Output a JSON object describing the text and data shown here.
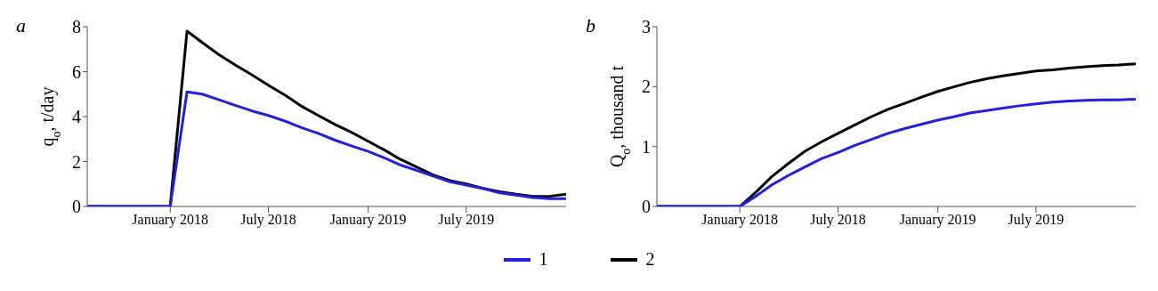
{
  "chart_data": [
    {
      "type": "line",
      "title": "a",
      "ylabel": "q$_{o}$, t/day",
      "x": [
        "2017-08",
        "2017-09",
        "2017-10",
        "2017-11",
        "2017-12",
        "2018-01",
        "2018-02",
        "2018-03",
        "2018-04",
        "2018-05",
        "2018-06",
        "2018-07",
        "2018-08",
        "2018-09",
        "2018-10",
        "2018-11",
        "2018-12",
        "2019-01",
        "2019-02",
        "2019-03",
        "2019-04",
        "2019-05",
        "2019-06",
        "2019-07",
        "2019-08",
        "2019-09",
        "2019-10",
        "2019-11",
        "2019-12",
        "2020-01"
      ],
      "series": [
        {
          "name": "1",
          "color": "#2020e0",
          "values": [
            0,
            0,
            0,
            0,
            0,
            0,
            5.1,
            5.0,
            4.75,
            4.5,
            4.25,
            4.05,
            3.8,
            3.5,
            3.25,
            2.95,
            2.7,
            2.45,
            2.15,
            1.85,
            1.6,
            1.35,
            1.1,
            0.95,
            0.8,
            0.6,
            0.5,
            0.4,
            0.35,
            0.35
          ]
        },
        {
          "name": "2",
          "color": "#000000",
          "values": [
            0,
            0,
            0,
            0,
            0,
            0,
            7.8,
            7.3,
            6.75,
            6.3,
            5.85,
            5.4,
            4.95,
            4.45,
            4.05,
            3.65,
            3.3,
            2.9,
            2.5,
            2.1,
            1.75,
            1.4,
            1.15,
            1.0,
            0.8,
            0.65,
            0.55,
            0.45,
            0.45,
            0.55
          ]
        }
      ],
      "xlim": [
        "2017-08",
        "2020-01"
      ],
      "xticks": [
        {
          "value": "2018-01",
          "label": "January 2018"
        },
        {
          "value": "2018-07",
          "label": "July 2018"
        },
        {
          "value": "2019-01",
          "label": "January 2019"
        },
        {
          "value": "2019-07",
          "label": "July 2019"
        }
      ],
      "ylim": [
        0,
        8
      ],
      "yticks": [
        0,
        2,
        4,
        6,
        8
      ],
      "grid": false,
      "legend": "bottom",
      "line_style": "solid"
    },
    {
      "type": "line",
      "title": "b",
      "ylabel": "Q$_{o}$, thousand t",
      "x": [
        "2017-08",
        "2017-09",
        "2017-10",
        "2017-11",
        "2017-12",
        "2018-01",
        "2018-02",
        "2018-03",
        "2018-04",
        "2018-05",
        "2018-06",
        "2018-07",
        "2018-08",
        "2018-09",
        "2018-10",
        "2018-11",
        "2018-12",
        "2019-01",
        "2019-02",
        "2019-03",
        "2019-04",
        "2019-05",
        "2019-06",
        "2019-07",
        "2019-08",
        "2019-09",
        "2019-10",
        "2019-11",
        "2019-12",
        "2020-01"
      ],
      "series": [
        {
          "name": "1",
          "color": "#2020e0",
          "values": [
            0,
            0,
            0,
            0,
            0,
            0,
            0.18,
            0.36,
            0.52,
            0.66,
            0.8,
            0.9,
            1.02,
            1.12,
            1.22,
            1.3,
            1.37,
            1.44,
            1.5,
            1.56,
            1.6,
            1.64,
            1.68,
            1.71,
            1.74,
            1.76,
            1.77,
            1.78,
            1.78,
            1.79
          ]
        },
        {
          "name": "2",
          "color": "#000000",
          "values": [
            0,
            0,
            0,
            0,
            0,
            0,
            0.25,
            0.5,
            0.72,
            0.92,
            1.08,
            1.22,
            1.36,
            1.5,
            1.62,
            1.72,
            1.82,
            1.92,
            2.0,
            2.07,
            2.13,
            2.18,
            2.22,
            2.26,
            2.28,
            2.31,
            2.33,
            2.35,
            2.36,
            2.38
          ]
        }
      ],
      "xlim": [
        "2017-08",
        "2020-01"
      ],
      "xticks": [
        {
          "value": "2018-01",
          "label": "January 2018"
        },
        {
          "value": "2018-07",
          "label": "July 2018"
        },
        {
          "value": "2019-01",
          "label": "January 2019"
        },
        {
          "value": "2019-07",
          "label": "July 2019"
        }
      ],
      "ylim": [
        0,
        3
      ],
      "yticks": [
        0,
        1,
        2,
        3
      ],
      "grid": false,
      "legend": "bottom",
      "line_style": "solid"
    }
  ]
}
